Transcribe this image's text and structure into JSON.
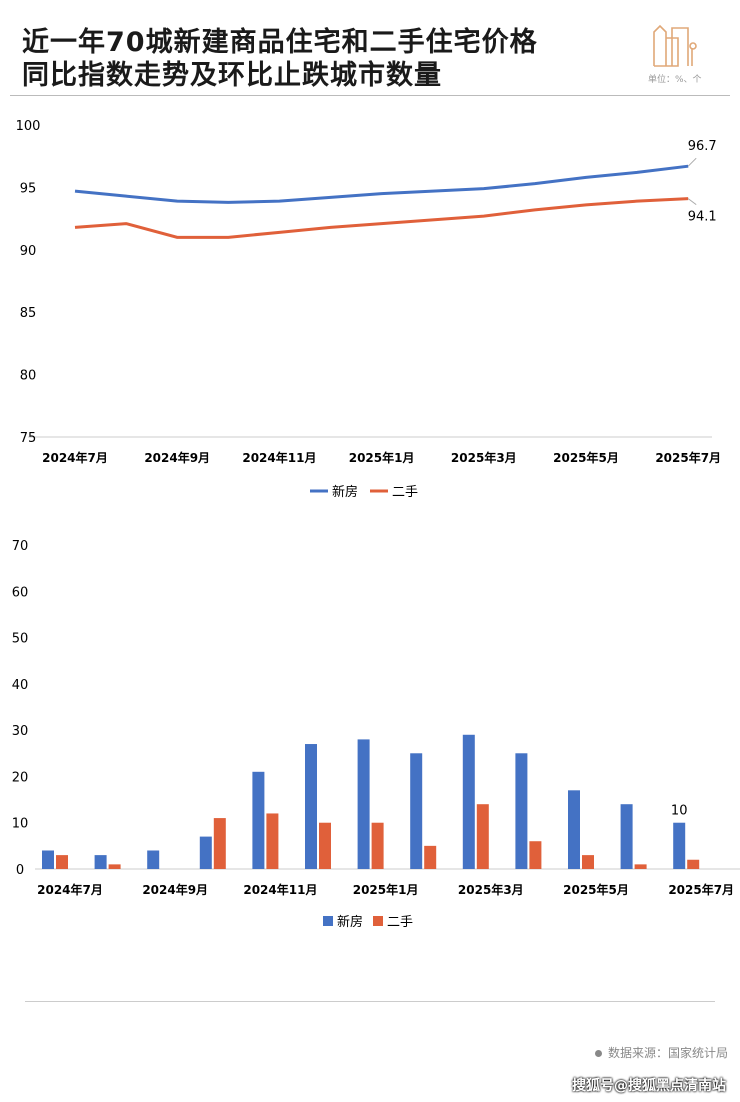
{
  "title_line1": "近一年70城新建商品住宅和二手住宅价格",
  "title_line2": "同比指数走势及环比止跌城市数量",
  "unit": "单位：%、个",
  "source": "数据来源：国家统计局",
  "watermark": "搜狐号@搜狐黑点清南站",
  "colors": {
    "new": "#4472c4",
    "second": "#e0603a"
  },
  "chart_data": [
    {
      "type": "line",
      "title": "",
      "categories": [
        "2024年7月",
        "2024年8月",
        "2024年9月",
        "2024年10月",
        "2024年11月",
        "2024年12月",
        "2025年1月",
        "2025年2月",
        "2025年3月",
        "2025年4月",
        "2025年5月",
        "2025年6月",
        "2025年7月"
      ],
      "x_tick_labels": [
        "2024年7月",
        "2024年9月",
        "2024年11月",
        "2025年1月",
        "2025年3月",
        "2025年5月",
        "2025年7月"
      ],
      "y_ticks": [
        "75",
        "80",
        "85",
        "90",
        "95",
        "100"
      ],
      "ylim": [
        75,
        100
      ],
      "series": [
        {
          "name": "新房",
          "values": [
            94.7,
            94.3,
            93.9,
            93.8,
            93.9,
            94.2,
            94.5,
            94.7,
            94.9,
            95.3,
            95.8,
            96.2,
            96.7
          ],
          "end_label": "96.7"
        },
        {
          "name": "二手",
          "values": [
            91.8,
            92.1,
            91.0,
            91.0,
            91.4,
            91.8,
            92.1,
            92.4,
            92.7,
            93.2,
            93.6,
            93.9,
            94.1
          ],
          "end_label": "94.1"
        }
      ],
      "legend": "bottom"
    },
    {
      "type": "bar",
      "title": "",
      "categories": [
        "2024年7月",
        "2024年8月",
        "2024年9月",
        "2024年10月",
        "2024年11月",
        "2024年12月",
        "2025年1月",
        "2025年2月",
        "2025年3月",
        "2025年4月",
        "2025年5月",
        "2025年6月",
        "2025年7月"
      ],
      "x_tick_labels": [
        "2024年7月",
        "2024年9月",
        "2024年11月",
        "2025年1月",
        "2025年3月",
        "2025年5月",
        "2025年7月"
      ],
      "y_ticks": [
        "0",
        "10",
        "20",
        "30",
        "40",
        "50",
        "60",
        "70"
      ],
      "ylim": [
        0,
        70
      ],
      "series": [
        {
          "name": "新房",
          "values": [
            4,
            3,
            4,
            7,
            21,
            27,
            28,
            25,
            29,
            25,
            17,
            14,
            10
          ],
          "end_label": "10"
        },
        {
          "name": "二手",
          "values": [
            3,
            1,
            0,
            11,
            12,
            10,
            10,
            5,
            14,
            6,
            3,
            1,
            2
          ]
        }
      ],
      "legend": "bottom"
    }
  ]
}
